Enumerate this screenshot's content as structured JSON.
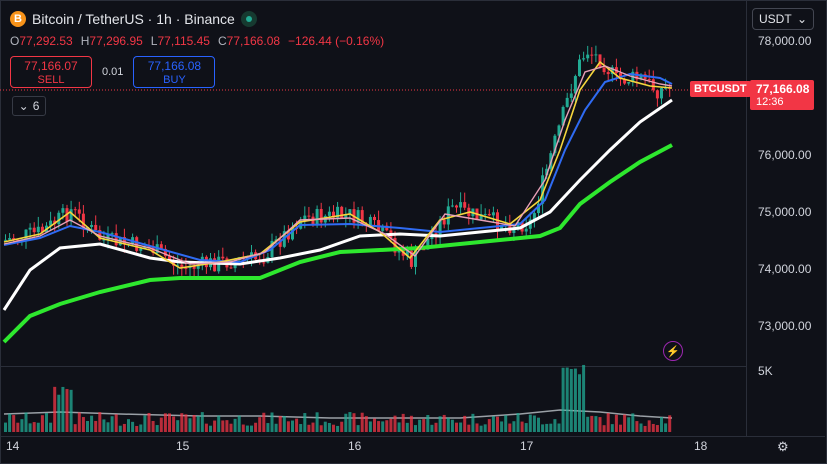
{
  "header": {
    "title": "Bitcoin / TetherUS · 1h · Binance",
    "logo_glyph": "B"
  },
  "ohlc": {
    "o_label": "O",
    "o": "77,292.53",
    "h_label": "H",
    "h": "77,296.95",
    "l_label": "L",
    "l": "77,115.45",
    "c_label": "C",
    "c": "77,166.08",
    "change": "−126.44 (−0.16%)"
  },
  "trade": {
    "sell_price": "77,166.07",
    "sell_label": "SELL",
    "spread": "0.01",
    "buy_price": "77,166.08",
    "buy_label": "BUY"
  },
  "indicators": {
    "count": "6"
  },
  "currency": {
    "label": "USDT"
  },
  "price_axis": {
    "ticks": [
      "78,000.00",
      "76,000.00",
      "75,000.00",
      "74,000.00",
      "73,000.00"
    ]
  },
  "volume_axis": {
    "tick": "5K"
  },
  "time_axis": {
    "ticks": [
      "14",
      "15",
      "16",
      "17",
      "18"
    ]
  },
  "last_price": {
    "ticker": "BTCUSDT",
    "price": "77,166.08",
    "countdown": "12:36"
  },
  "colors": {
    "up": "#22ab94",
    "down": "#f23645",
    "ma_white": "#ffffff",
    "ma_green": "#2ee82e",
    "ma_yellow": "#f5d63d",
    "ma_blue": "#2f6bf3",
    "ma_pink": "#e8a0b8",
    "ma_gray": "#9aa0a6"
  },
  "icons": {
    "live": "live-dot-icon",
    "collapse": "chevron-down-icon",
    "currency": "chevron-down-icon",
    "alert": "lightning-icon",
    "settings": "gear-icon"
  }
}
